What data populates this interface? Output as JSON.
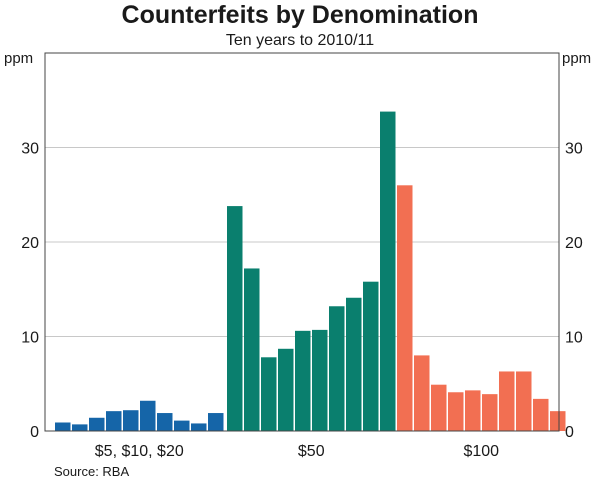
{
  "chart_data": {
    "type": "bar",
    "title": "Counterfeits by Denomination",
    "subtitle": "Ten years to 2010/11",
    "ylabel_left": "ppm",
    "ylabel_right": "ppm",
    "ylim": [
      0,
      40
    ],
    "yticks": [
      0,
      10,
      20,
      30
    ],
    "grid": true,
    "groups": [
      {
        "name": "$5, $10, $20",
        "color": "#1565a8",
        "values": [
          0.9,
          0.7,
          1.4,
          2.1,
          2.2,
          3.2,
          1.9,
          1.1,
          0.8,
          1.9
        ]
      },
      {
        "name": "$50",
        "color": "#0a7f6e",
        "values": [
          23.8,
          17.2,
          7.8,
          8.7,
          10.6,
          10.7,
          13.2,
          14.1,
          15.8,
          33.8
        ]
      },
      {
        "name": "$100",
        "color": "#f26f52",
        "values": [
          26.0,
          8.0,
          4.9,
          4.1,
          4.3,
          3.9,
          6.3,
          6.3,
          3.4,
          2.1
        ]
      }
    ]
  },
  "source": "Source: RBA"
}
